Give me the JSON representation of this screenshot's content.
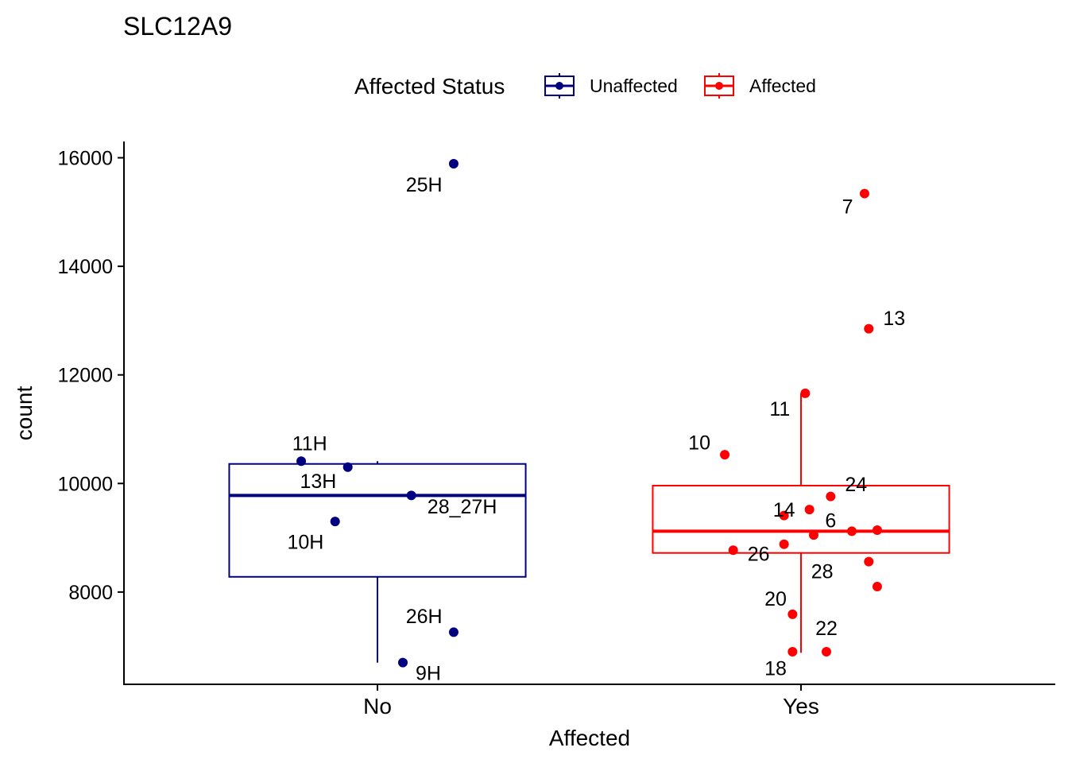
{
  "chart_data": {
    "type": "boxplot",
    "title": "SLC12A9",
    "xlabel": "Affected",
    "ylabel": "count",
    "ylim": [
      6300,
      16300
    ],
    "y_ticks": [
      8000,
      10000,
      12000,
      14000,
      16000
    ],
    "categories": [
      "No",
      "Yes"
    ],
    "legend": {
      "title": "Affected Status",
      "position": "top",
      "entries": [
        {
          "label": "Unaffected",
          "color": "#000080"
        },
        {
          "label": "Affected",
          "color": "#ff0000"
        }
      ]
    },
    "boxes": [
      {
        "category": "No",
        "group": "Unaffected",
        "color": "#000080",
        "q1": 8280,
        "median": 9780,
        "q3": 10360,
        "whisker_low": 6700,
        "whisker_high": 10410
      },
      {
        "category": "Yes",
        "group": "Affected",
        "color": "#ff0000",
        "q1": 8720,
        "median": 9120,
        "q3": 9960,
        "whisker_low": 6880,
        "whisker_high": 11660
      }
    ],
    "points": [
      {
        "category": "No",
        "jitter": -0.18,
        "value": 10410,
        "label": "11H",
        "label_dx": 0.02,
        "label_dy": 330
      },
      {
        "category": "No",
        "jitter": -0.07,
        "value": 10300,
        "label": "13H",
        "label_dx": -0.07,
        "label_dy": -250
      },
      {
        "category": "No",
        "jitter": 0.08,
        "value": 9780,
        "label": "28_27H",
        "label_dx": 0.12,
        "label_dy": -200
      },
      {
        "category": "No",
        "jitter": -0.1,
        "value": 9300,
        "label": "10H",
        "label_dx": -0.07,
        "label_dy": -370
      },
      {
        "category": "No",
        "jitter": 0.18,
        "value": 7260,
        "label": "26H",
        "label_dx": -0.07,
        "label_dy": 300
      },
      {
        "category": "No",
        "jitter": 0.06,
        "value": 6700,
        "label": "9H",
        "label_dx": 0.06,
        "label_dy": -190
      },
      {
        "category": "No",
        "jitter": 0.18,
        "value": 15890,
        "label": "25H",
        "label_dx": -0.07,
        "label_dy": -380
      },
      {
        "category": "Yes",
        "jitter": 0.15,
        "value": 15340,
        "label": "7",
        "label_dx": -0.04,
        "label_dy": -230
      },
      {
        "category": "Yes",
        "jitter": 0.16,
        "value": 12850,
        "label": "13",
        "label_dx": 0.06,
        "label_dy": 200
      },
      {
        "category": "Yes",
        "jitter": 0.01,
        "value": 11660,
        "label": "11",
        "label_dx": -0.06,
        "label_dy": -280
      },
      {
        "category": "Yes",
        "jitter": -0.18,
        "value": 10530,
        "label": "10",
        "label_dx": -0.06,
        "label_dy": 230
      },
      {
        "category": "Yes",
        "jitter": 0.07,
        "value": 9760,
        "label": "24",
        "label_dx": 0.06,
        "label_dy": 230
      },
      {
        "category": "Yes",
        "jitter": 0.02,
        "value": 9520,
        "label": "14",
        "label_dx": -0.06,
        "label_dy": 0
      },
      {
        "category": "Yes",
        "jitter": 0.03,
        "value": 9050,
        "label": "6",
        "label_dx": 0.04,
        "label_dy": 270
      },
      {
        "category": "Yes",
        "jitter": -0.04,
        "value": 8880,
        "label": "26",
        "label_dx": -0.06,
        "label_dy": -170
      },
      {
        "category": "Yes",
        "jitter": -0.16,
        "value": 8770,
        "label": "",
        "label_dx": 0,
        "label_dy": 0
      },
      {
        "category": "Yes",
        "jitter": -0.04,
        "value": 9410,
        "label": "",
        "label_dx": 0,
        "label_dy": 0
      },
      {
        "category": "Yes",
        "jitter": 0.12,
        "value": 9120,
        "label": "",
        "label_dx": 0,
        "label_dy": 0
      },
      {
        "category": "Yes",
        "jitter": 0.18,
        "value": 9140,
        "label": "",
        "label_dx": 0,
        "label_dy": 0
      },
      {
        "category": "Yes",
        "jitter": 0.16,
        "value": 8560,
        "label": "28",
        "label_dx": -0.11,
        "label_dy": -170
      },
      {
        "category": "Yes",
        "jitter": 0.18,
        "value": 8100,
        "label": "",
        "label_dx": 0,
        "label_dy": 0
      },
      {
        "category": "Yes",
        "jitter": -0.02,
        "value": 7590,
        "label": "20",
        "label_dx": -0.04,
        "label_dy": 290
      },
      {
        "category": "Yes",
        "jitter": 0.06,
        "value": 6900,
        "label": "22",
        "label_dx": 0.0,
        "label_dy": 440
      },
      {
        "category": "Yes",
        "jitter": -0.02,
        "value": 6900,
        "label": "18",
        "label_dx": -0.04,
        "label_dy": -300
      }
    ]
  }
}
